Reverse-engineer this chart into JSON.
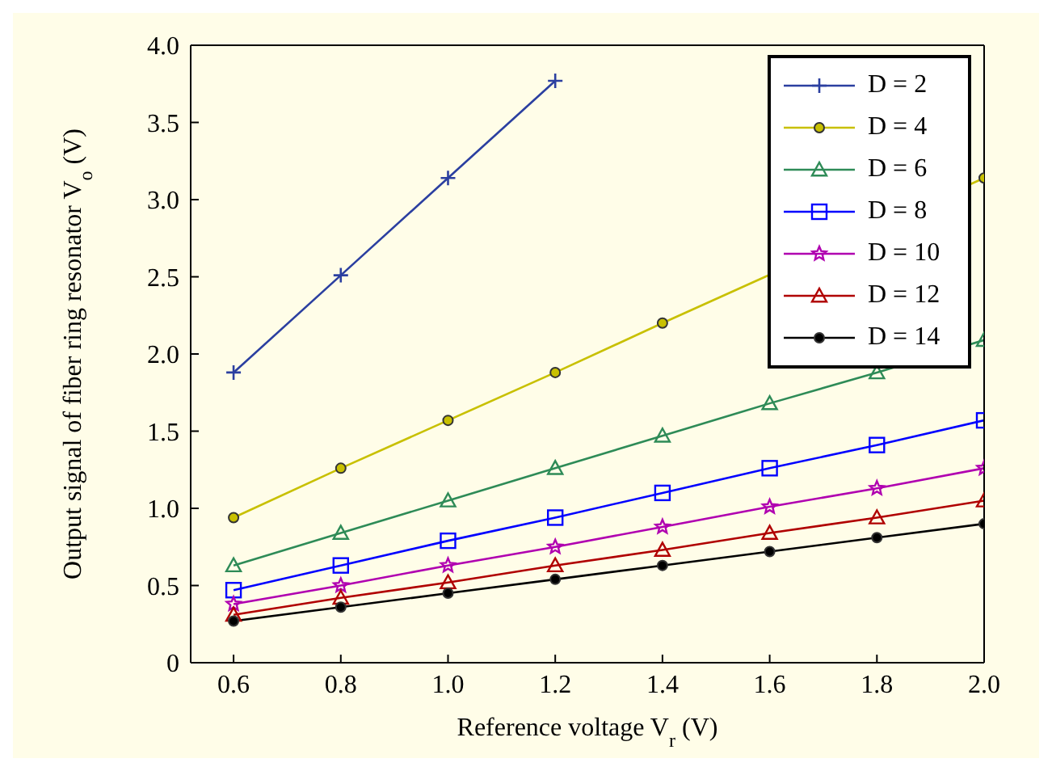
{
  "chart_data": {
    "type": "line",
    "xlabel": "Reference voltage V$_{r}$ (V)",
    "ylabel": "Output signal of fiber ring resonator V$_{o}$ (V)",
    "x": [
      0.6,
      0.8,
      1.0,
      1.2,
      1.4,
      1.6,
      1.8,
      2.0
    ],
    "xlim": [
      0.52,
      2.0
    ],
    "xticks": [
      0.6,
      0.8,
      {
        "value": 1,
        "label": "1.0"
      },
      1.2,
      1.4,
      1.6,
      1.8,
      {
        "value": 2,
        "label": "2.0"
      }
    ],
    "ylim": [
      0,
      4
    ],
    "yticks": [
      0,
      0.5,
      {
        "value": 1,
        "label": "1.0"
      },
      1.5,
      {
        "value": 2,
        "label": "2.0"
      },
      2.5,
      {
        "value": 3,
        "label": "3.0"
      },
      3.5,
      {
        "value": 4,
        "label": "4.0"
      }
    ],
    "grid": false,
    "legend": "top right",
    "line_style": "solid",
    "series": [
      {
        "name": "D = 2",
        "color": "#2b3fa0",
        "marker": "cross",
        "values": [
          1.88,
          2.51,
          3.14,
          3.77,
          null,
          null,
          null,
          null
        ]
      },
      {
        "name": "D = 4",
        "color": "#c8c000",
        "marker": "circle",
        "values": [
          0.94,
          1.26,
          1.57,
          1.88,
          2.2,
          null,
          null,
          3.14
        ]
      },
      {
        "name": "D = 6",
        "color": "#2e8b57",
        "marker": "triangle",
        "values": [
          0.63,
          0.84,
          1.05,
          1.26,
          1.47,
          1.68,
          1.88,
          2.09
        ]
      },
      {
        "name": "D = 8",
        "color": "#0000ff",
        "marker": "square",
        "values": [
          0.47,
          0.63,
          0.79,
          0.94,
          1.1,
          1.26,
          1.41,
          1.57
        ]
      },
      {
        "name": "D = 10",
        "color": "#b000b0",
        "marker": "star",
        "values": [
          0.38,
          0.5,
          0.63,
          0.75,
          0.88,
          1.01,
          1.13,
          1.26
        ]
      },
      {
        "name": "D = 12",
        "color": "#b00000",
        "marker": "triangle",
        "values": [
          0.31,
          0.42,
          0.52,
          0.63,
          0.73,
          0.84,
          0.94,
          1.05
        ]
      },
      {
        "name": "D = 14",
        "color": "#000000",
        "marker": "circle",
        "values": [
          0.27,
          0.36,
          0.45,
          0.54,
          0.63,
          0.72,
          0.81,
          0.9
        ]
      }
    ]
  }
}
